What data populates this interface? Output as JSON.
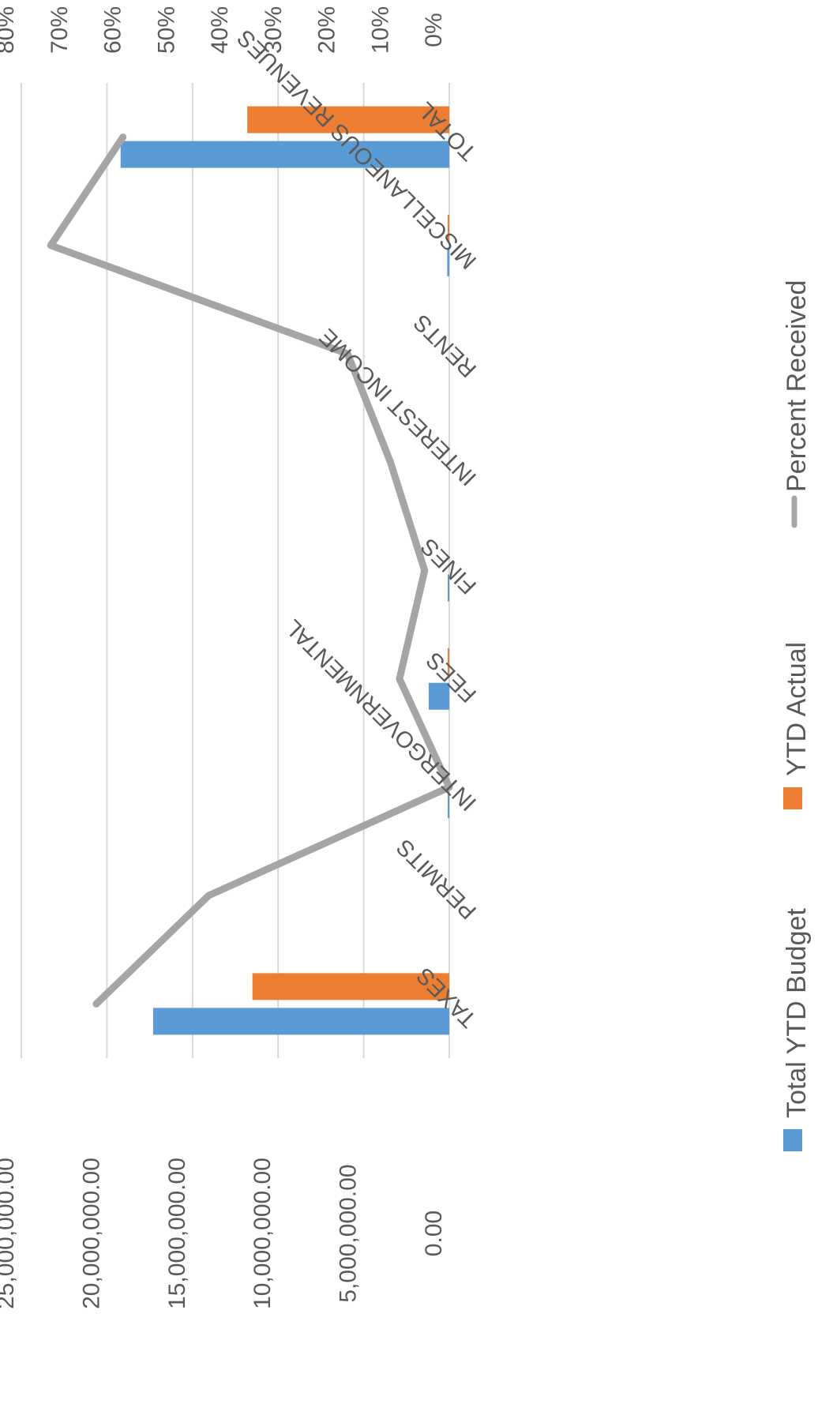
{
  "chart_data": {
    "type": "bar",
    "orientation": "rotated-90-clockwise",
    "categories": [
      "TAXES",
      "PERMITS",
      "INTERGOVERNMENTAL",
      "FEES",
      "FINES",
      "INTEREST INCOME",
      "RENTS",
      "MISCELLANEOUS REVENUES",
      "TOTAL"
    ],
    "series": [
      {
        "name": "Total YTD Budget",
        "type": "bar",
        "axis": "primary",
        "color": "#5B9BD5",
        "values": [
          17300000,
          0,
          90000,
          1200000,
          60000,
          0,
          0,
          120000,
          19200000
        ]
      },
      {
        "name": "YTD Actual",
        "type": "bar",
        "axis": "primary",
        "color": "#ED7D31",
        "values": [
          11500000,
          0,
          0,
          40000,
          0,
          0,
          0,
          90000,
          11800000
        ]
      },
      {
        "name": "Percent Received",
        "type": "line",
        "axis": "secondary",
        "color": "#A5A5A5",
        "values": [
          0.66,
          0.45,
          0.0,
          0.093,
          0.046,
          0.11,
          0.19,
          0.745,
          0.61
        ]
      }
    ],
    "primary_axis": {
      "ylim": [
        0,
        25000000
      ],
      "ticks": [
        "0.00",
        "5,000,000.00",
        "10,000,000.00",
        "15,000,000.00",
        "20,000,000.00",
        "25,000,000.00"
      ]
    },
    "secondary_axis": {
      "ylim": [
        0,
        0.8
      ],
      "ticks": [
        "0%",
        "10%",
        "20%",
        "30%",
        "40%",
        "50%",
        "60%",
        "70%",
        "80%"
      ]
    },
    "grid": true,
    "legend_position": "bottom",
    "title": "",
    "xlabel": "",
    "ylabel": ""
  }
}
